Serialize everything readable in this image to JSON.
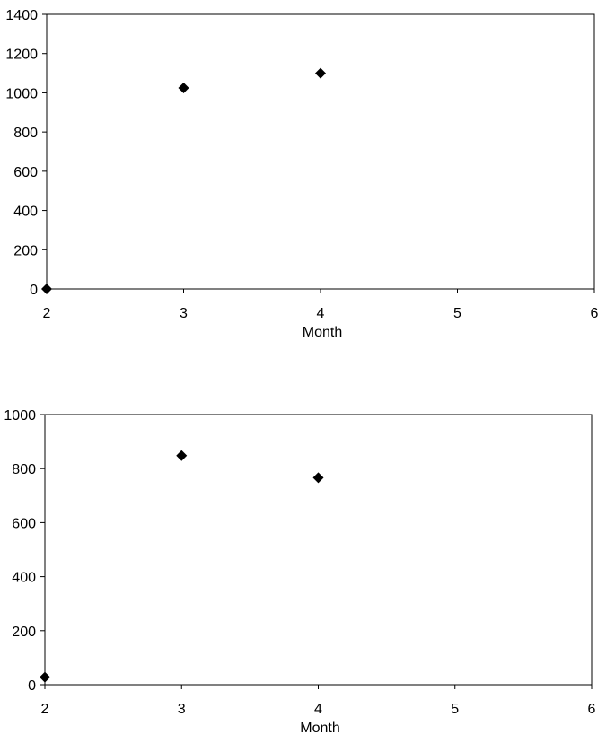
{
  "chart_data": [
    {
      "type": "scatter",
      "title": "",
      "xlabel": "Month",
      "ylabel": "",
      "xlim": [
        2,
        6
      ],
      "ylim": [
        0,
        1400
      ],
      "xticks": [
        2,
        3,
        4,
        5,
        6
      ],
      "yticks": [
        0,
        200,
        400,
        600,
        800,
        1000,
        1200,
        1400
      ],
      "grid": false,
      "marker": "diamond",
      "color": "#000000",
      "series": [
        {
          "x": [
            2,
            3,
            4
          ],
          "y": [
            0,
            1025,
            1100
          ]
        }
      ]
    },
    {
      "type": "scatter",
      "title": "",
      "xlabel": "Month",
      "ylabel": "",
      "xlim": [
        2,
        6
      ],
      "ylim": [
        0,
        1000
      ],
      "xticks": [
        2,
        3,
        4,
        5,
        6
      ],
      "yticks": [
        0,
        200,
        400,
        600,
        800,
        1000
      ],
      "grid": false,
      "marker": "diamond",
      "color": "#000000",
      "series": [
        {
          "x": [
            2,
            3,
            4
          ],
          "y": [
            28,
            848,
            766
          ]
        }
      ]
    }
  ]
}
